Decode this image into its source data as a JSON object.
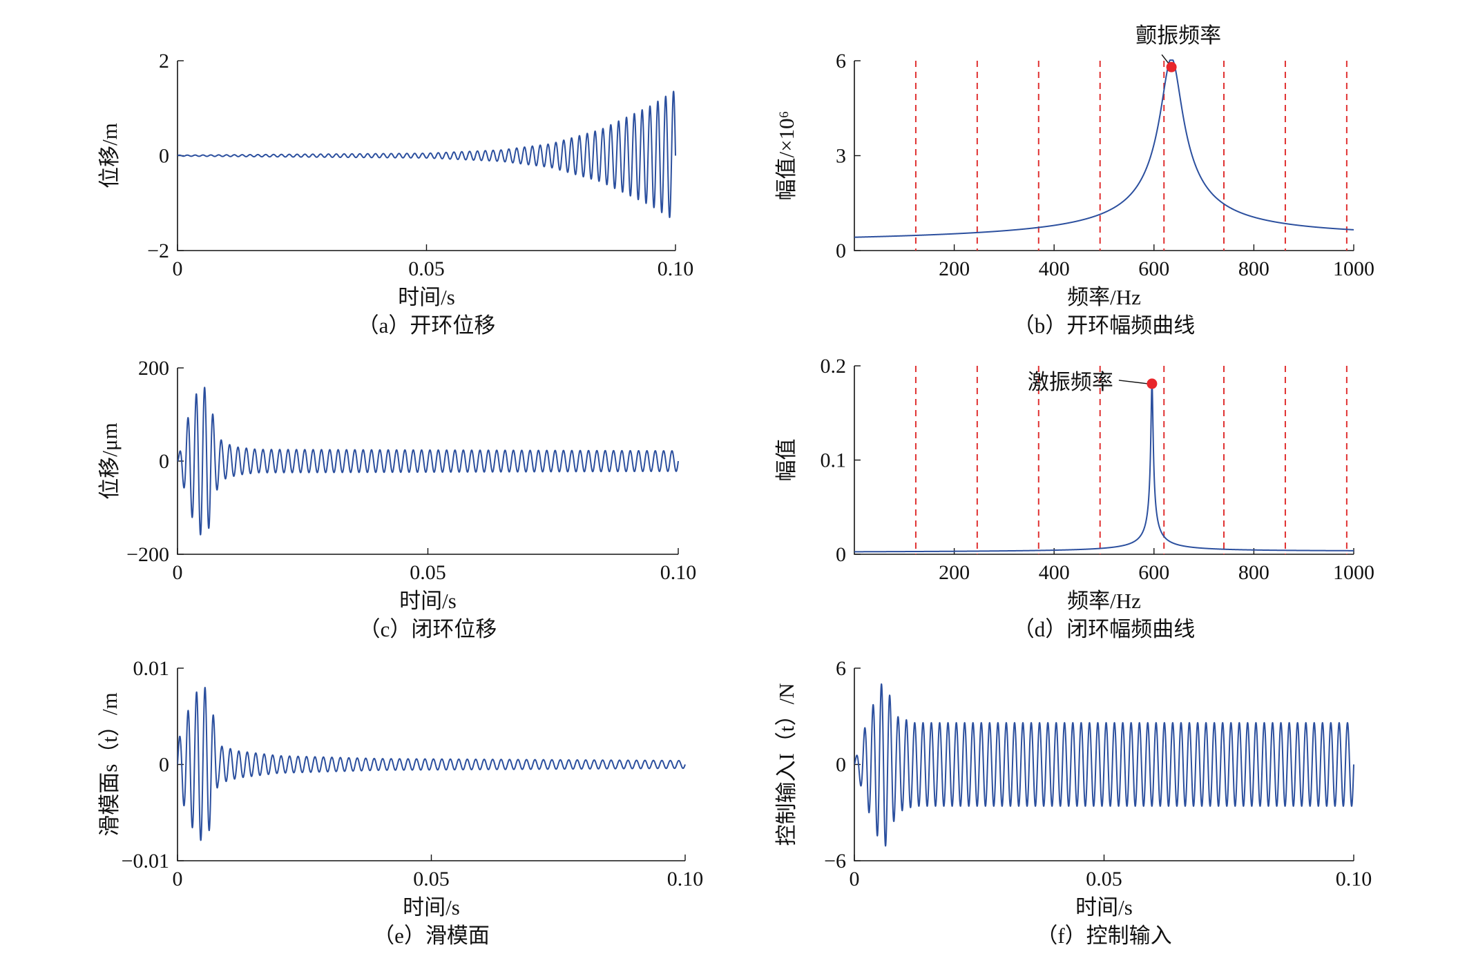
{
  "chart_data": [
    {
      "id": "a",
      "type": "line",
      "panel_title": "（a）开环位移",
      "xlabel": "时间/s",
      "ylabel": "位移/m",
      "xlim": [
        0,
        0.1
      ],
      "ylim": [
        -2,
        2
      ],
      "xticks": [
        0,
        0.05,
        0.1
      ],
      "xtick_labels": [
        "0",
        "0.05",
        "0.10"
      ],
      "yticks": [
        -2,
        0,
        2
      ],
      "ytick_labels": [
        "−2",
        "0",
        "2"
      ],
      "series": [
        {
          "color": "#2b4f9e",
          "signal": {
            "kind": "sine",
            "frequency_hz": 635,
            "start": 0.0,
            "end": 0.1,
            "envelope": [
              [
                0,
                0.01
              ],
              [
                0.05,
                0.05
              ],
              [
                0.065,
                0.12
              ],
              [
                0.075,
                0.25
              ],
              [
                0.085,
                0.55
              ],
              [
                0.095,
                1.05
              ],
              [
                0.1,
                1.38
              ]
            ]
          }
        }
      ]
    },
    {
      "id": "b",
      "type": "line",
      "panel_title": "（b）开环幅频曲线",
      "xlabel": "频率/Hz",
      "ylabel": "幅值/×10⁶",
      "xlim": [
        0,
        1000
      ],
      "ylim": [
        0,
        6
      ],
      "xticks": [
        200,
        400,
        600,
        800,
        1000
      ],
      "xtick_labels": [
        "200",
        "400",
        "600",
        "800",
        "1000"
      ],
      "yticks": [
        0,
        3,
        6
      ],
      "ytick_labels": [
        "0",
        "3",
        "6"
      ],
      "vlines": [
        123,
        246,
        369,
        492,
        620,
        740,
        863,
        986
      ],
      "vline_color": "#e03030",
      "series": [
        {
          "color": "#2b4f9e",
          "signal": {
            "kind": "resonance",
            "f0": 635,
            "peak": 5.8,
            "width": 22,
            "base": 0.22
          }
        }
      ],
      "marker": {
        "x": 635,
        "y": 5.8,
        "color": "#e8262b"
      },
      "annotation": {
        "text": "颤振频率",
        "x": 635,
        "y": 5.8
      }
    },
    {
      "id": "c",
      "type": "line",
      "panel_title": "（c）闭环位移",
      "xlabel": "时间/s",
      "ylabel": "位移/μm",
      "xlim": [
        0,
        0.1
      ],
      "ylim": [
        -200,
        200
      ],
      "xticks": [
        0,
        0.05,
        0.1
      ],
      "xtick_labels": [
        "0",
        "0.05",
        "0.10"
      ],
      "yticks": [
        -200,
        0,
        200
      ],
      "ytick_labels": [
        "−200",
        "0",
        "200"
      ],
      "series": [
        {
          "color": "#2b4f9e",
          "signal": {
            "kind": "sine",
            "frequency_hz": 600,
            "start": 0.0,
            "end": 0.1,
            "envelope": [
              [
                0,
                0
              ],
              [
                0.001,
                45
              ],
              [
                0.002,
                90
              ],
              [
                0.0035,
                140
              ],
              [
                0.005,
                165
              ],
              [
                0.0065,
                140
              ],
              [
                0.0075,
                70
              ],
              [
                0.009,
                40
              ],
              [
                0.012,
                30
              ],
              [
                0.016,
                25
              ],
              [
                0.1,
                22
              ]
            ]
          }
        }
      ]
    },
    {
      "id": "d",
      "type": "line",
      "panel_title": "（d）闭环幅频曲线",
      "xlabel": "频率/Hz",
      "ylabel": "幅值",
      "xlim": [
        0,
        1000
      ],
      "ylim": [
        0,
        0.2
      ],
      "xticks": [
        200,
        400,
        600,
        800,
        1000
      ],
      "xtick_labels": [
        "200",
        "400",
        "600",
        "800",
        "1000"
      ],
      "yticks": [
        0,
        0.1,
        0.2
      ],
      "ytick_labels": [
        "0",
        "0.1",
        "0.2"
      ],
      "vlines": [
        123,
        246,
        369,
        492,
        620,
        740,
        863,
        986
      ],
      "vline_color": "#e03030",
      "series": [
        {
          "color": "#2b4f9e",
          "signal": {
            "kind": "resonance",
            "f0": 596,
            "peak": 0.18,
            "width": 2.2,
            "base": 0.002
          }
        }
      ],
      "marker": {
        "x": 596,
        "y": 0.181,
        "color": "#e8262b"
      },
      "annotation": {
        "text": "激振频率",
        "x": 596,
        "y": 0.181
      }
    },
    {
      "id": "e",
      "type": "line",
      "panel_title": "（e）滑模面",
      "xlabel": "时间/s",
      "ylabel": "滑模面s（t）/m",
      "xlim": [
        0,
        0.1
      ],
      "ylim": [
        -0.01,
        0.01
      ],
      "xticks": [
        0,
        0.05,
        0.1
      ],
      "xtick_labels": [
        "0",
        "0.05",
        "0.10"
      ],
      "yticks": [
        -0.01,
        0,
        0.01
      ],
      "ytick_labels": [
        "−0.01",
        "0",
        "0.01"
      ],
      "series": [
        {
          "color": "#2b4f9e",
          "signal": {
            "kind": "sine",
            "frequency_hz": 600,
            "start": 0.0,
            "end": 0.1,
            "envelope": [
              [
                0,
                0.0022
              ],
              [
                0.002,
                0.0055
              ],
              [
                0.004,
                0.0078
              ],
              [
                0.0055,
                0.008
              ],
              [
                0.0068,
                0.006
              ],
              [
                0.008,
                0.002
              ],
              [
                0.012,
                0.0014
              ],
              [
                0.02,
                0.0009
              ],
              [
                0.04,
                0.0006
              ],
              [
                0.1,
                0.0004
              ]
            ]
          }
        }
      ]
    },
    {
      "id": "f",
      "type": "line",
      "panel_title": "（f）控制输入",
      "xlabel": "时间/s",
      "ylabel": "控制输入I（t）/N",
      "xlim": [
        0,
        0.1
      ],
      "ylim": [
        -6,
        6
      ],
      "xticks": [
        0,
        0.05,
        0.1
      ],
      "xtick_labels": [
        "0",
        "0.05",
        "0.10"
      ],
      "yticks": [
        -6,
        0,
        6
      ],
      "ytick_labels": [
        "−6",
        "0",
        "6"
      ],
      "series": [
        {
          "color": "#2b4f9e",
          "signal": {
            "kind": "sine",
            "frequency_hz": 600,
            "start": 0.0,
            "end": 0.1,
            "envelope": [
              [
                0,
                0.2
              ],
              [
                0.001,
                1.0
              ],
              [
                0.002,
                2.2
              ],
              [
                0.0035,
                3.5
              ],
              [
                0.005,
                4.8
              ],
              [
                0.006,
                5.3
              ],
              [
                0.0072,
                4.2
              ],
              [
                0.0085,
                3.0
              ],
              [
                0.012,
                2.6
              ],
              [
                0.1,
                2.6
              ]
            ]
          }
        }
      ]
    }
  ]
}
